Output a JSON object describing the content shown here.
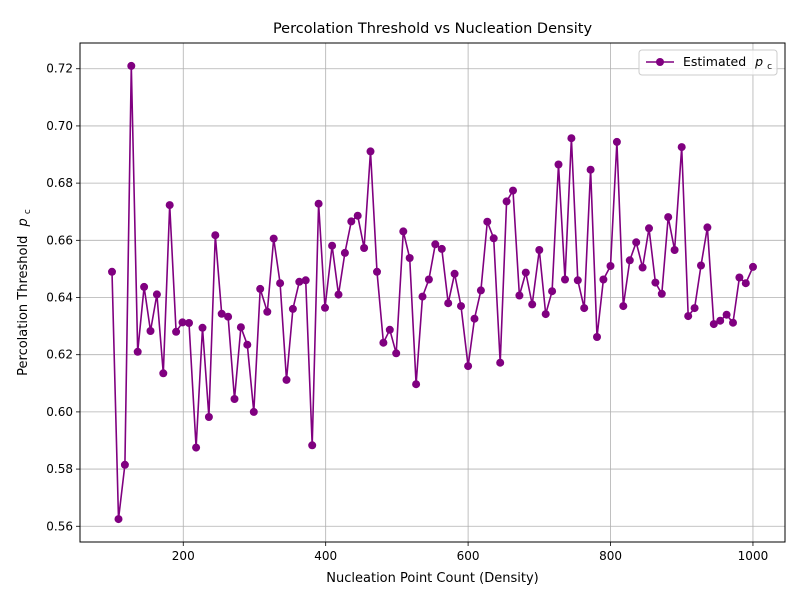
{
  "chart_data": {
    "type": "line",
    "title": "Percolation Threshold vs Nucleation Density",
    "xlabel": "Nucleation Point Count (Density)",
    "ylabel": "Percolation Threshold",
    "ylabel_symbol": "p",
    "ylabel_subscript": "c",
    "xlim": [
      55,
      1045
    ],
    "ylim": [
      0.5545,
      0.729
    ],
    "xticks": [
      200,
      400,
      600,
      800,
      1000
    ],
    "yticks": [
      0.56,
      0.58,
      0.6,
      0.62,
      0.64,
      0.66,
      0.68,
      0.7,
      0.72
    ],
    "xtick_labels": [
      "200",
      "400",
      "600",
      "800",
      "1000"
    ],
    "ytick_labels": [
      "0.56",
      "0.58",
      "0.60",
      "0.62",
      "0.64",
      "0.66",
      "0.68",
      "0.70",
      "0.72"
    ],
    "grid": true,
    "legend_position": "top-right",
    "series": [
      {
        "name": "Estimated",
        "name_symbol": "p",
        "name_subscript": "c",
        "color": "#800080",
        "marker": "circle",
        "x": [
          100,
          109,
          118,
          127,
          136,
          145,
          154,
          163,
          172,
          181,
          190,
          199,
          208,
          218,
          227,
          236,
          245,
          254,
          263,
          272,
          281,
          290,
          299,
          308,
          318,
          327,
          336,
          345,
          354,
          363,
          372,
          381,
          390,
          399,
          409,
          418,
          427,
          436,
          445,
          454,
          463,
          472,
          481,
          490,
          499,
          509,
          518,
          527,
          536,
          545,
          554,
          563,
          572,
          581,
          590,
          600,
          609,
          618,
          627,
          636,
          645,
          654,
          663,
          672,
          681,
          690,
          700,
          709,
          718,
          727,
          736,
          745,
          754,
          763,
          772,
          781,
          790,
          800,
          809,
          818,
          827,
          836,
          845,
          854,
          863,
          872,
          881,
          890,
          900,
          909,
          918,
          927,
          936,
          945,
          954,
          963,
          972,
          981,
          990,
          1000
        ],
        "y": [
          0.649,
          0.5625,
          0.5815,
          0.721,
          0.621,
          0.6437,
          0.6283,
          0.6411,
          0.6135,
          0.6723,
          0.628,
          0.6313,
          0.6311,
          0.5875,
          0.6294,
          0.5982,
          0.6618,
          0.6343,
          0.6333,
          0.6045,
          0.6296,
          0.6235,
          0.6,
          0.643,
          0.635,
          0.6606,
          0.645,
          0.6112,
          0.636,
          0.6455,
          0.646,
          0.5883,
          0.6728,
          0.6364,
          0.6581,
          0.641,
          0.6556,
          0.6666,
          0.6686,
          0.6573,
          0.6911,
          0.649,
          0.6242,
          0.6287,
          0.6205,
          0.6631,
          0.6538,
          0.6097,
          0.6403,
          0.6463,
          0.6586,
          0.657,
          0.638,
          0.6483,
          0.637,
          0.616,
          0.6326,
          0.6425,
          0.6665,
          0.6607,
          0.6172,
          0.6736,
          0.6774,
          0.6407,
          0.6487,
          0.6376,
          0.6566,
          0.6342,
          0.6422,
          0.6865,
          0.6463,
          0.6957,
          0.646,
          0.6363,
          0.6847,
          0.6262,
          0.6463,
          0.651,
          0.6944,
          0.637,
          0.653,
          0.6593,
          0.6505,
          0.6642,
          0.6452,
          0.6413,
          0.6681,
          0.6566,
          0.6926,
          0.6335,
          0.6363,
          0.6512,
          0.6645,
          0.6307,
          0.6319,
          0.634,
          0.6312,
          0.647,
          0.645,
          0.6507
        ]
      }
    ]
  }
}
